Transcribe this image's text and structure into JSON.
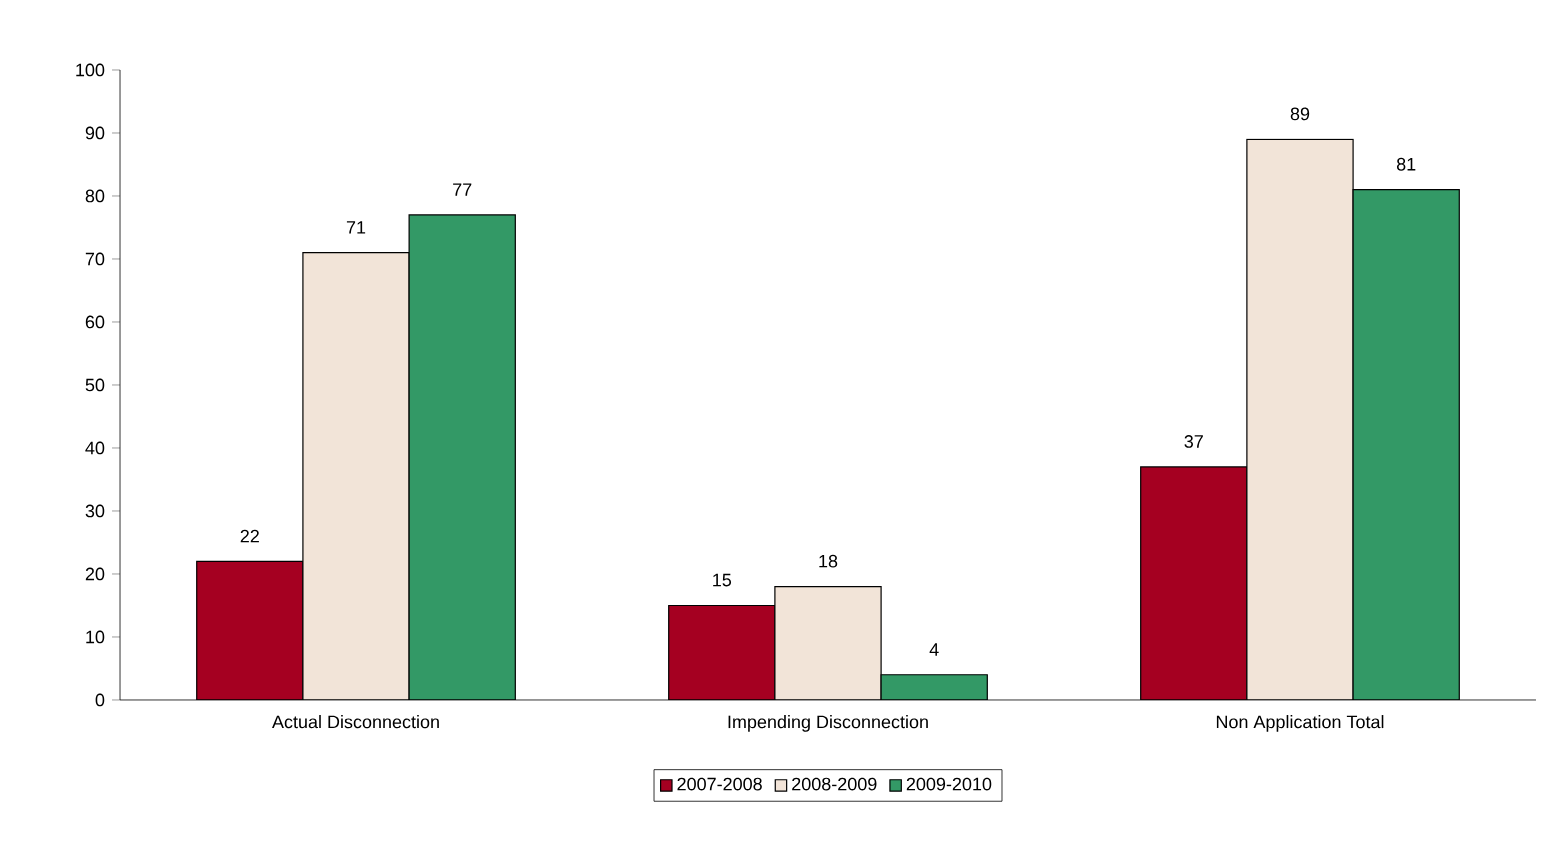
{
  "chart_data": {
    "type": "bar",
    "categories": [
      "Actual Disconnection",
      "Impending Disconnection",
      "Non Application Total"
    ],
    "series": [
      {
        "name": "2007-2008",
        "color": "#a50021",
        "values": [
          22,
          15,
          37
        ]
      },
      {
        "name": "2008-2009",
        "color": "#f2e4d8",
        "values": [
          71,
          18,
          89
        ]
      },
      {
        "name": "2009-2010",
        "color": "#339966",
        "values": [
          77,
          4,
          81
        ]
      }
    ],
    "ylim": [
      0,
      100
    ],
    "yticks": [
      0,
      10,
      20,
      30,
      40,
      50,
      60,
      70,
      80,
      90,
      100
    ],
    "grid": false,
    "legend": "bottom",
    "data_labels": true
  }
}
